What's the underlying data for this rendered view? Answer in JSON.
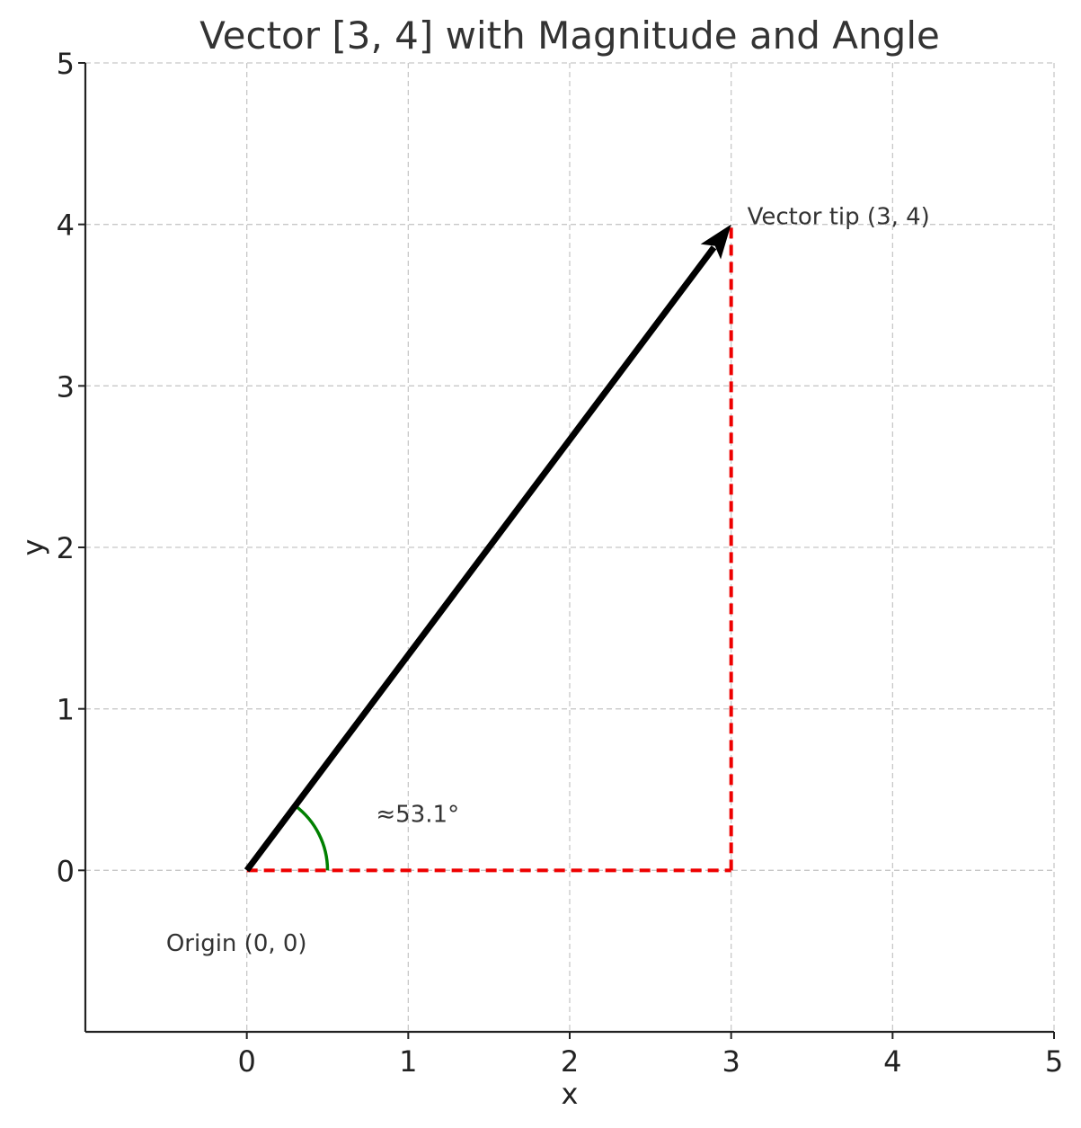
{
  "chart_data": {
    "type": "line",
    "title": "Vector [3, 4] with Magnitude and Angle",
    "xlabel": "x",
    "ylabel": "y",
    "xlim": [
      -1,
      5
    ],
    "ylim": [
      -1,
      5
    ],
    "xticks": [
      0,
      1,
      2,
      3,
      4,
      5
    ],
    "yticks": [
      0,
      1,
      2,
      3,
      4,
      5
    ],
    "grid": true,
    "vector": {
      "from": [
        0,
        0
      ],
      "to": [
        3,
        4
      ],
      "color": "#000000"
    },
    "components": [
      {
        "from": [
          0,
          0
        ],
        "to": [
          3,
          0
        ],
        "color": "#ee0000"
      },
      {
        "from": [
          3,
          0
        ],
        "to": [
          3,
          4
        ],
        "color": "#ee0000"
      }
    ],
    "angle_arc": {
      "center": [
        0,
        0
      ],
      "radius": 0.5,
      "start_deg": 0,
      "end_deg": 53.13,
      "color": "#008000"
    },
    "annotations": [
      {
        "text": "Vector tip (3, 4)",
        "x": 3.1,
        "y": 4.0
      },
      {
        "text": "≈53.1°",
        "x": 0.8,
        "y": 0.3
      },
      {
        "text": "Origin (0, 0)",
        "x": -0.5,
        "y": -0.5
      }
    ]
  }
}
